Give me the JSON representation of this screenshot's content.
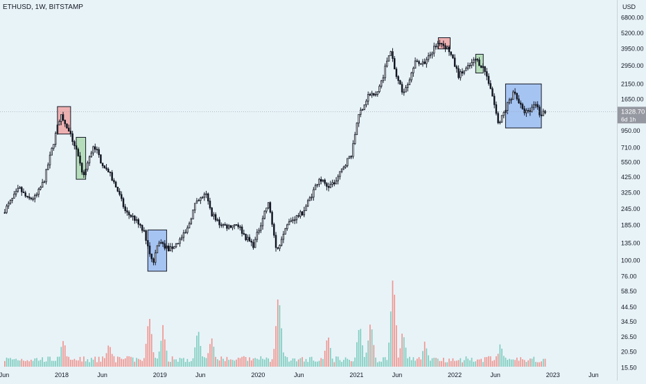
{
  "header": {
    "title": "ETHUSD, 1W, BITSTAMP",
    "currency": "USD"
  },
  "price_label": {
    "value": "1328.70",
    "countdown": "6d 1h"
  },
  "colors": {
    "background": "#e8f3f8",
    "candle": "#131722",
    "volume_up": "#7fcdbf",
    "volume_down": "#f0958f",
    "box_red": "#ef9a9a",
    "box_green": "#a5d6a7",
    "box_blue": "#90b4f0",
    "price_tag": "#9598a1"
  },
  "chart_data": {
    "type": "candlestick",
    "title": "ETHUSD, 1W, BITSTAMP",
    "y_scale": "log",
    "ylim": [
      14,
      8000
    ],
    "x_range": [
      "2017-06-01",
      "2023-08-01"
    ],
    "price_ticks": [
      "6800.00",
      "5200.00",
      "3950.00",
      "2950.00",
      "2150.00",
      "1650.00",
      "950.00",
      "710.00",
      "550.00",
      "425.00",
      "325.00",
      "245.00",
      "185.00",
      "135.00",
      "100.00",
      "76.00",
      "58.50",
      "44.50",
      "34.50",
      "26.50",
      "20.50",
      "15.50"
    ],
    "x_ticks": [
      {
        "label": "Jun",
        "date": "2017-06-01"
      },
      {
        "label": "2018",
        "date": "2018-01-01"
      },
      {
        "label": "Jun",
        "date": "2018-06-01"
      },
      {
        "label": "2019",
        "date": "2019-01-01"
      },
      {
        "label": "Jun",
        "date": "2019-06-01"
      },
      {
        "label": "2020",
        "date": "2020-01-01"
      },
      {
        "label": "Jun",
        "date": "2020-06-01"
      },
      {
        "label": "2021",
        "date": "2021-01-01"
      },
      {
        "label": "Jun",
        "date": "2021-06-01"
      },
      {
        "label": "2022",
        "date": "2022-01-01"
      },
      {
        "label": "Jun",
        "date": "2022-06-01"
      },
      {
        "label": "2023",
        "date": "2023-01-01"
      },
      {
        "label": "Jun",
        "date": "2023-06-01"
      }
    ],
    "last_price": 1328.7,
    "price_path": [
      [
        "2017-06-01",
        230
      ],
      [
        "2017-07-01",
        280
      ],
      [
        "2017-08-01",
        350
      ],
      [
        "2017-09-01",
        290
      ],
      [
        "2017-10-01",
        300
      ],
      [
        "2017-11-01",
        400
      ],
      [
        "2017-12-01",
        700
      ],
      [
        "2018-01-01",
        1250
      ],
      [
        "2018-01-20",
        1050
      ],
      [
        "2018-02-10",
        850
      ],
      [
        "2018-03-01",
        700
      ],
      [
        "2018-03-25",
        420
      ],
      [
        "2018-04-20",
        600
      ],
      [
        "2018-05-05",
        760
      ],
      [
        "2018-06-01",
        560
      ],
      [
        "2018-07-01",
        460
      ],
      [
        "2018-08-01",
        340
      ],
      [
        "2018-09-01",
        230
      ],
      [
        "2018-10-01",
        210
      ],
      [
        "2018-11-10",
        160
      ],
      [
        "2018-12-10",
        95
      ],
      [
        "2019-01-01",
        140
      ],
      [
        "2019-02-10",
        120
      ],
      [
        "2019-03-10",
        135
      ],
      [
        "2019-04-15",
        165
      ],
      [
        "2019-05-15",
        260
      ],
      [
        "2019-06-25",
        320
      ],
      [
        "2019-07-15",
        230
      ],
      [
        "2019-08-15",
        190
      ],
      [
        "2019-09-15",
        180
      ],
      [
        "2019-10-20",
        190
      ],
      [
        "2019-11-20",
        150
      ],
      [
        "2019-12-20",
        130
      ],
      [
        "2020-02-01",
        240
      ],
      [
        "2020-02-15",
        270
      ],
      [
        "2020-03-15",
        115
      ],
      [
        "2020-04-15",
        180
      ],
      [
        "2020-05-15",
        205
      ],
      [
        "2020-06-20",
        230
      ],
      [
        "2020-07-25",
        320
      ],
      [
        "2020-08-20",
        420
      ],
      [
        "2020-09-20",
        360
      ],
      [
        "2020-10-20",
        390
      ],
      [
        "2020-11-20",
        520
      ],
      [
        "2020-12-20",
        650
      ],
      [
        "2021-01-10",
        1200
      ],
      [
        "2021-02-20",
        1800
      ],
      [
        "2021-03-20",
        1750
      ],
      [
        "2021-04-15",
        2500
      ],
      [
        "2021-05-10",
        3950
      ],
      [
        "2021-06-01",
        2500
      ],
      [
        "2021-06-25",
        1850
      ],
      [
        "2021-07-20",
        2300
      ],
      [
        "2021-08-15",
        3200
      ],
      [
        "2021-09-15",
        3000
      ],
      [
        "2021-10-20",
        4000
      ],
      [
        "2021-11-10",
        4500
      ],
      [
        "2021-12-15",
        3900
      ],
      [
        "2022-01-20",
        2500
      ],
      [
        "2022-02-20",
        2800
      ],
      [
        "2022-03-25",
        3300
      ],
      [
        "2022-04-25",
        2800
      ],
      [
        "2022-05-20",
        2000
      ],
      [
        "2022-06-18",
        1050
      ],
      [
        "2022-07-20",
        1500
      ],
      [
        "2022-08-15",
        1900
      ],
      [
        "2022-09-15",
        1350
      ],
      [
        "2022-10-10",
        1300
      ],
      [
        "2022-11-01",
        1580
      ],
      [
        "2022-11-20",
        1250
      ],
      [
        "2022-12-01",
        1328.7
      ]
    ],
    "volume_spikes": [
      [
        "2018-01-05",
        2.1
      ],
      [
        "2018-06-25",
        1.8
      ],
      [
        "2018-11-20",
        4.2
      ],
      [
        "2019-01-10",
        3.1
      ],
      [
        "2019-05-20",
        3.0
      ],
      [
        "2019-07-10",
        2.2
      ],
      [
        "2020-03-15",
        6.0
      ],
      [
        "2020-09-15",
        2.4
      ],
      [
        "2021-01-10",
        3.4
      ],
      [
        "2021-02-20",
        3.6
      ],
      [
        "2021-05-15",
        7.4
      ],
      [
        "2021-06-20",
        2.8
      ],
      [
        "2021-09-10",
        2.0
      ],
      [
        "2022-06-18",
        1.8
      ]
    ],
    "boxes": [
      {
        "color": "red",
        "start": "2017-12-16",
        "end": "2018-02-03",
        "low": 900,
        "high": 1450
      },
      {
        "color": "green",
        "start": "2018-02-24",
        "end": "2018-03-31",
        "low": 410,
        "high": 850
      },
      {
        "color": "blue",
        "start": "2018-11-17",
        "end": "2019-01-26",
        "low": 83,
        "high": 170
      },
      {
        "color": "red",
        "start": "2021-11-01",
        "end": "2021-12-15",
        "low": 3950,
        "high": 4800
      },
      {
        "color": "green",
        "start": "2022-03-20",
        "end": "2022-04-17",
        "low": 2600,
        "high": 3600
      },
      {
        "color": "blue",
        "start": "2022-07-09",
        "end": "2022-11-19",
        "low": 1000,
        "high": 2150
      }
    ]
  }
}
